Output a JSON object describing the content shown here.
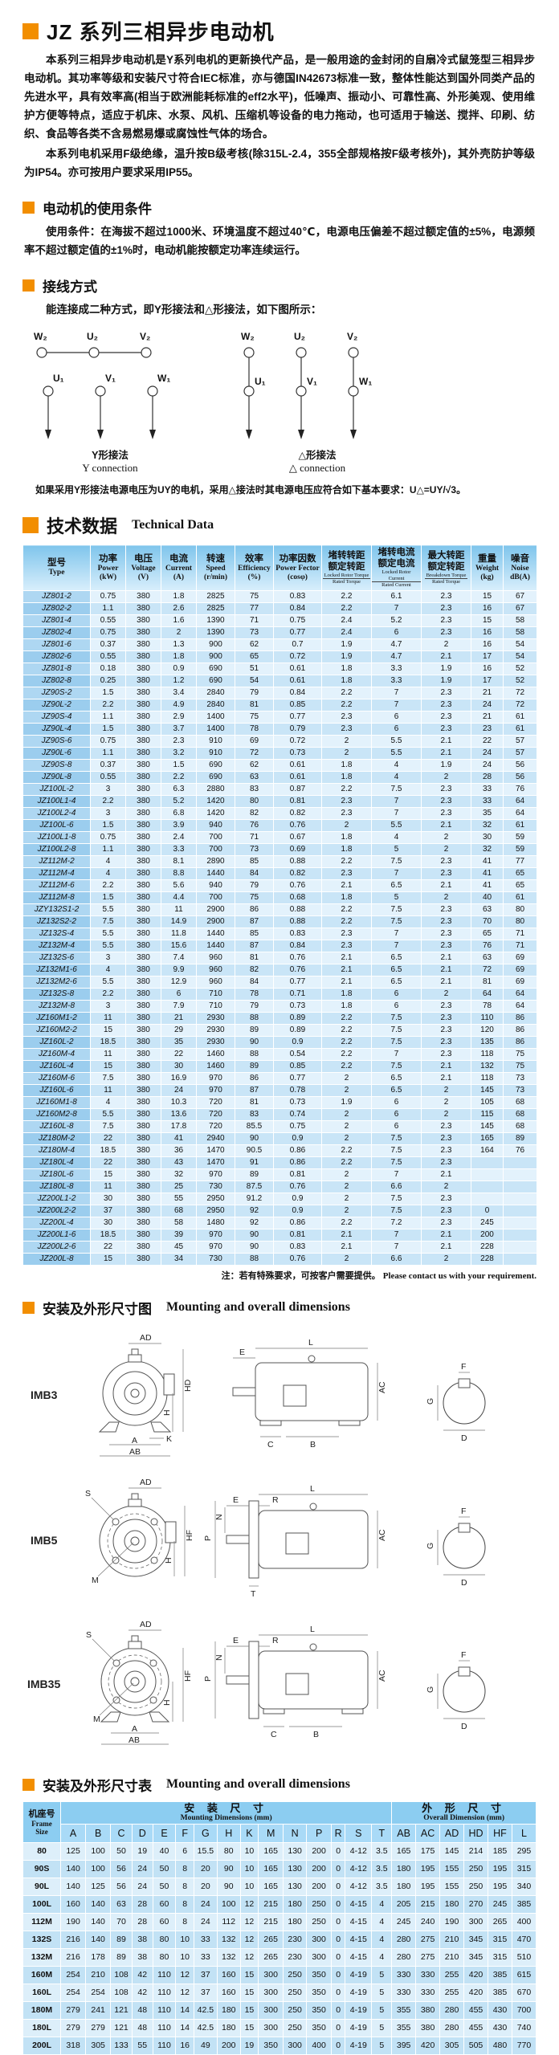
{
  "doc": {
    "title": "JZ 系列三相异步电动机",
    "intro1": "本系列三相异步电动机是Y系列电机的更新换代产品，是一般用途的金封闭的自扇冷式鼠笼型三相异步电动机。其功率等级和安装尺寸符合IEC标准，亦与德国IN42673标准一致，整体性能达到国外同类产品的先进水平，具有效率高(相当于欧洲能耗标准的eff2水平)，低噪声、振动小、可靠性高、外形美观、使用维护方便等特点，适应于机床、水泵、风机、压缩机等设备的电力拖动，也可适用于输送、搅拌、印刷、纺织、食品等各类不含易燃易爆或腐蚀性气体的场合。",
    "intro2": "本系列电机采用F级绝缘，温升按B级考核(除315L-2.4，355全部规格按F级考核外)，其外壳防护等级为IP54。亦可按用户要求采用IP55。"
  },
  "usage": {
    "title": "电动机的使用条件",
    "text": "使用条件：在海拔不超过1000米、环境温度不超过40℃，电源电压偏差不超过额定值的±5%，电源频率不超过额定值的±1%时，电动机能按额定功率连续运行。"
  },
  "wiring": {
    "title": "接线方式",
    "lead": "能连接成二种方式，即Y形接法和△形接法，如下图所示：",
    "top_terminals": [
      "W₂",
      "U₂",
      "V₂"
    ],
    "bottom_terminals": [
      "U₁",
      "V₁",
      "W₁"
    ],
    "y_caption_cn": "Y形接法",
    "y_caption_en": "Y connection",
    "delta_caption_cn": "△形接法",
    "delta_caption_en": "△ connection",
    "note": "如果采用Y形接法电源电压为UY的电机，采用△接法时其电源电压应符合如下基本要求：U△=UY/√3。"
  },
  "tech": {
    "title_cn": "技术数据",
    "title_en": "Technical Data"
  },
  "tech_table": {
    "headers": [
      {
        "cn": "型号",
        "en": "Type"
      },
      {
        "cn": "功率",
        "en": "Power",
        "unit": "(kW)"
      },
      {
        "cn": "电压",
        "en": "Voltage",
        "unit": "(V)"
      },
      {
        "cn": "电流",
        "en": "Current",
        "unit": "(A)"
      },
      {
        "cn": "转速",
        "en": "Speed",
        "unit": "(r/min)"
      },
      {
        "cn": "效率",
        "en": "Efficiency",
        "unit": "(%)"
      },
      {
        "cn": "功率因数",
        "en": "Power Fector",
        "unit": "(cosφ)"
      },
      {
        "cn": "堵转转距",
        "cn2": "额定转距",
        "en": "Locked Rotor Torque",
        "en2": "Rated Torque"
      },
      {
        "cn": "堵转电流",
        "cn2": "额定电流",
        "en": "Locked Rotor Current",
        "en2": "Rated Current"
      },
      {
        "cn": "最大转距",
        "cn2": "额定转距",
        "en": "Breakdown Torque",
        "en2": "Rated Torque"
      },
      {
        "cn": "重量",
        "en": "Weight",
        "unit": "(kg)"
      },
      {
        "cn": "噪音",
        "en": "Noise",
        "unit": "dB(A)"
      }
    ],
    "rows": [
      [
        "JZ801-2",
        "0.75",
        "380",
        "1.8",
        "2825",
        "75",
        "0.83",
        "2.2",
        "6.1",
        "2.3",
        "15",
        "67"
      ],
      [
        "JZ802-2",
        "1.1",
        "380",
        "2.6",
        "2825",
        "77",
        "0.84",
        "2.2",
        "7",
        "2.3",
        "16",
        "67"
      ],
      [
        "JZ801-4",
        "0.55",
        "380",
        "1.6",
        "1390",
        "71",
        "0.75",
        "2.4",
        "5.2",
        "2.3",
        "15",
        "58"
      ],
      [
        "JZ802-4",
        "0.75",
        "380",
        "2",
        "1390",
        "73",
        "0.77",
        "2.4",
        "6",
        "2.3",
        "16",
        "58"
      ],
      [
        "JZ801-6",
        "0.37",
        "380",
        "1.3",
        "900",
        "62",
        "0.7",
        "1.9",
        "4.7",
        "2",
        "16",
        "54"
      ],
      [
        "JZ802-6",
        "0.55",
        "380",
        "1.8",
        "900",
        "65",
        "0.72",
        "1.9",
        "4.7",
        "2.1",
        "17",
        "54"
      ],
      [
        "JZ801-8",
        "0.18",
        "380",
        "0.9",
        "690",
        "51",
        "0.61",
        "1.8",
        "3.3",
        "1.9",
        "16",
        "52"
      ],
      [
        "JZ802-8",
        "0.25",
        "380",
        "1.2",
        "690",
        "54",
        "0.61",
        "1.8",
        "3.3",
        "1.9",
        "17",
        "52"
      ],
      [
        "JZ90S-2",
        "1.5",
        "380",
        "3.4",
        "2840",
        "79",
        "0.84",
        "2.2",
        "7",
        "2.3",
        "21",
        "72"
      ],
      [
        "JZ90L-2",
        "2.2",
        "380",
        "4.9",
        "2840",
        "81",
        "0.85",
        "2.2",
        "7",
        "2.3",
        "24",
        "72"
      ],
      [
        "JZ90S-4",
        "1.1",
        "380",
        "2.9",
        "1400",
        "75",
        "0.77",
        "2.3",
        "6",
        "2.3",
        "21",
        "61"
      ],
      [
        "JZ90L-4",
        "1.5",
        "380",
        "3.7",
        "1400",
        "78",
        "0.79",
        "2.3",
        "6",
        "2.3",
        "23",
        "61"
      ],
      [
        "JZ90S-6",
        "0.75",
        "380",
        "2.3",
        "910",
        "69",
        "0.72",
        "2",
        "5.5",
        "2.1",
        "22",
        "57"
      ],
      [
        "JZ90L-6",
        "1.1",
        "380",
        "3.2",
        "910",
        "72",
        "0.73",
        "2",
        "5.5",
        "2.1",
        "24",
        "57"
      ],
      [
        "JZ90S-8",
        "0.37",
        "380",
        "1.5",
        "690",
        "62",
        "0.61",
        "1.8",
        "4",
        "1.9",
        "24",
        "56"
      ],
      [
        "JZ90L-8",
        "0.55",
        "380",
        "2.2",
        "690",
        "63",
        "0.61",
        "1.8",
        "4",
        "2",
        "28",
        "56"
      ],
      [
        "JZ100L-2",
        "3",
        "380",
        "6.3",
        "2880",
        "83",
        "0.87",
        "2.2",
        "7.5",
        "2.3",
        "33",
        "76"
      ],
      [
        "JZ100L1-4",
        "2.2",
        "380",
        "5.2",
        "1420",
        "80",
        "0.81",
        "2.3",
        "7",
        "2.3",
        "33",
        "64"
      ],
      [
        "JZ100L2-4",
        "3",
        "380",
        "6.8",
        "1420",
        "82",
        "0.82",
        "2.3",
        "7",
        "2.3",
        "35",
        "64"
      ],
      [
        "JZ100L-6",
        "1.5",
        "380",
        "3.9",
        "940",
        "76",
        "0.76",
        "2",
        "5.5",
        "2.1",
        "32",
        "61"
      ],
      [
        "JZ100L1-8",
        "0.75",
        "380",
        "2.4",
        "700",
        "71",
        "0.67",
        "1.8",
        "4",
        "2",
        "30",
        "59"
      ],
      [
        "JZ100L2-8",
        "1.1",
        "380",
        "3.3",
        "700",
        "73",
        "0.69",
        "1.8",
        "5",
        "2",
        "32",
        "59"
      ],
      [
        "JZ112M-2",
        "4",
        "380",
        "8.1",
        "2890",
        "85",
        "0.88",
        "2.2",
        "7.5",
        "2.3",
        "41",
        "77"
      ],
      [
        "JZ112M-4",
        "4",
        "380",
        "8.8",
        "1440",
        "84",
        "0.82",
        "2.3",
        "7",
        "2.3",
        "41",
        "65"
      ],
      [
        "JZ112M-6",
        "2.2",
        "380",
        "5.6",
        "940",
        "79",
        "0.76",
        "2.1",
        "6.5",
        "2.1",
        "41",
        "65"
      ],
      [
        "JZ112M-8",
        "1.5",
        "380",
        "4.4",
        "700",
        "75",
        "0.68",
        "1.8",
        "5",
        "2",
        "40",
        "61"
      ],
      [
        "JZY132S1-2",
        "5.5",
        "380",
        "11",
        "2900",
        "86",
        "0.88",
        "2.2",
        "7.5",
        "2.3",
        "63",
        "80"
      ],
      [
        "JZ132S2-2",
        "7.5",
        "380",
        "14.9",
        "2900",
        "87",
        "0.88",
        "2.2",
        "7.5",
        "2.3",
        "70",
        "80"
      ],
      [
        "JZ132S-4",
        "5.5",
        "380",
        "11.8",
        "1440",
        "85",
        "0.83",
        "2.3",
        "7",
        "2.3",
        "65",
        "71"
      ],
      [
        "JZ132M-4",
        "5.5",
        "380",
        "15.6",
        "1440",
        "87",
        "0.84",
        "2.3",
        "7",
        "2.3",
        "76",
        "71"
      ],
      [
        "JZ132S-6",
        "3",
        "380",
        "7.4",
        "960",
        "81",
        "0.76",
        "2.1",
        "6.5",
        "2.1",
        "63",
        "69"
      ],
      [
        "JZ132M1-6",
        "4",
        "380",
        "9.9",
        "960",
        "82",
        "0.76",
        "2.1",
        "6.5",
        "2.1",
        "72",
        "69"
      ],
      [
        "JZ132M2-6",
        "5.5",
        "380",
        "12.9",
        "960",
        "84",
        "0.77",
        "2.1",
        "6.5",
        "2.1",
        "81",
        "69"
      ],
      [
        "JZ132S-8",
        "2.2",
        "380",
        "6",
        "710",
        "78",
        "0.71",
        "1.8",
        "6",
        "2",
        "64",
        "64"
      ],
      [
        "JZ132M-8",
        "3",
        "380",
        "7.9",
        "710",
        "79",
        "0.73",
        "1.8",
        "6",
        "2.3",
        "78",
        "64"
      ],
      [
        "JZ160M1-2",
        "11",
        "380",
        "21",
        "2930",
        "88",
        "0.89",
        "2.2",
        "7.5",
        "2.3",
        "110",
        "86"
      ],
      [
        "JZ160M2-2",
        "15",
        "380",
        "29",
        "2930",
        "89",
        "0.89",
        "2.2",
        "7.5",
        "2.3",
        "120",
        "86"
      ],
      [
        "JZ160L-2",
        "18.5",
        "380",
        "35",
        "2930",
        "90",
        "0.9",
        "2.2",
        "7.5",
        "2.3",
        "135",
        "86"
      ],
      [
        "JZ160M-4",
        "11",
        "380",
        "22",
        "1460",
        "88",
        "0.54",
        "2.2",
        "7",
        "2.3",
        "118",
        "75"
      ],
      [
        "JZ160L-4",
        "15",
        "380",
        "30",
        "1460",
        "89",
        "0.85",
        "2.2",
        "7.5",
        "2.1",
        "132",
        "75"
      ],
      [
        "JZ160M-6",
        "7.5",
        "380",
        "16.9",
        "970",
        "86",
        "0.77",
        "2",
        "6.5",
        "2.1",
        "118",
        "73"
      ],
      [
        "JZ160L-6",
        "11",
        "380",
        "24",
        "970",
        "87",
        "0.78",
        "2",
        "6.5",
        "2",
        "145",
        "73"
      ],
      [
        "JZ160M1-8",
        "4",
        "380",
        "10.3",
        "720",
        "81",
        "0.73",
        "1.9",
        "6",
        "2",
        "105",
        "68"
      ],
      [
        "JZ160M2-8",
        "5.5",
        "380",
        "13.6",
        "720",
        "83",
        "0.74",
        "2",
        "6",
        "2",
        "115",
        "68"
      ],
      [
        "JZ160L-8",
        "7.5",
        "380",
        "17.8",
        "720",
        "85.5",
        "0.75",
        "2",
        "6",
        "2.3",
        "145",
        "68"
      ],
      [
        "JZ180M-2",
        "22",
        "380",
        "41",
        "2940",
        "90",
        "0.9",
        "2",
        "7.5",
        "2.3",
        "165",
        "89"
      ],
      [
        "JZ180M-4",
        "18.5",
        "380",
        "36",
        "1470",
        "90.5",
        "0.86",
        "2.2",
        "7.5",
        "2.3",
        "164",
        "76"
      ],
      [
        "JZ180L-4",
        "22",
        "380",
        "43",
        "1470",
        "91",
        "0.86",
        "2.2",
        "7.5",
        "2.3",
        "",
        ""
      ],
      [
        "JZ180L-6",
        "15",
        "380",
        "32",
        "970",
        "89",
        "0.81",
        "2",
        "7",
        "2.1",
        "",
        ""
      ],
      [
        "JZ180L-8",
        "11",
        "380",
        "25",
        "730",
        "87.5",
        "0.76",
        "2",
        "6.6",
        "2",
        "",
        ""
      ],
      [
        "JZ200L1-2",
        "30",
        "380",
        "55",
        "2950",
        "91.2",
        "0.9",
        "2",
        "7.5",
        "2.3",
        "",
        ""
      ],
      [
        "JZ200L2-2",
        "37",
        "380",
        "68",
        "2950",
        "92",
        "0.9",
        "2",
        "7.5",
        "2.3",
        "0",
        ""
      ],
      [
        "JZ200L-4",
        "30",
        "380",
        "58",
        "1480",
        "92",
        "0.86",
        "2.2",
        "7.2",
        "2.3",
        "245",
        ""
      ],
      [
        "JZ200L1-6",
        "18.5",
        "380",
        "39",
        "970",
        "90",
        "0.81",
        "2.1",
        "7",
        "2.1",
        "200",
        ""
      ],
      [
        "JZ200L2-6",
        "22",
        "380",
        "45",
        "970",
        "90",
        "0.83",
        "2.1",
        "7",
        "2.1",
        "228",
        ""
      ],
      [
        "JZ200L-8",
        "15",
        "380",
        "34",
        "730",
        "88",
        "0.76",
        "2",
        "6.6",
        "2",
        "228",
        ""
      ]
    ],
    "note_cn": "注：若有特殊要求，可按客户需要提供。",
    "note_en": "Please contact us with your requirement."
  },
  "mount_fig": {
    "title_cn": "安装及外形尺寸图",
    "title_en": "Mounting and overall dimensions",
    "figures": [
      {
        "label": "IMB3",
        "front": [
          "AD",
          "HD",
          "H",
          "K",
          "A",
          "AB"
        ],
        "side": [
          "L",
          "E",
          "C",
          "B",
          "AC"
        ],
        "shaft": [
          "F",
          "G",
          "D"
        ]
      },
      {
        "label": "IMB5",
        "front": [
          "AD",
          "S",
          "M",
          "HF",
          "H"
        ],
        "side": [
          "L",
          "E",
          "R",
          "P",
          "N",
          "AC",
          "T"
        ],
        "shaft": [
          "F",
          "G",
          "D"
        ]
      },
      {
        "label": "IMB35",
        "front": [
          "AD",
          "S",
          "M",
          "HF",
          "H",
          "A",
          "AB"
        ],
        "side": [
          "L",
          "E",
          "R",
          "P",
          "N",
          "AC",
          "C",
          "B"
        ],
        "shaft": [
          "F",
          "G",
          "D"
        ]
      }
    ]
  },
  "dim_sec": {
    "title_cn": "安装及外形尺寸表",
    "title_en": "Mounting and overall dimensions"
  },
  "dim_table": {
    "frame_cn": "机座号",
    "frame_en1": "Frame",
    "frame_en2": "Size",
    "mount_group_cn": "安 装 尺 寸",
    "mount_group_en": "Mounting Dimensions (mm)",
    "overall_group_cn": "外 形 尺 寸",
    "overall_group_en": "Overall Dimension (mm)",
    "cols": [
      "A",
      "B",
      "C",
      "D",
      "E",
      "F",
      "G",
      "H",
      "K",
      "M",
      "N",
      "P",
      "R",
      "S",
      "T",
      "AB",
      "AC",
      "AD",
      "HD",
      "HF",
      "L"
    ],
    "rows": [
      [
        "80",
        "125",
        "100",
        "50",
        "19",
        "40",
        "6",
        "15.5",
        "80",
        "10",
        "165",
        "130",
        "200",
        "0",
        "4-12",
        "3.5",
        "165",
        "175",
        "145",
        "214",
        "185",
        "295"
      ],
      [
        "90S",
        "140",
        "100",
        "56",
        "24",
        "50",
        "8",
        "20",
        "90",
        "10",
        "165",
        "130",
        "200",
        "0",
        "4-12",
        "3.5",
        "180",
        "195",
        "155",
        "250",
        "195",
        "315"
      ],
      [
        "90L",
        "140",
        "125",
        "56",
        "24",
        "50",
        "8",
        "20",
        "90",
        "10",
        "165",
        "130",
        "200",
        "0",
        "4-12",
        "3.5",
        "180",
        "195",
        "155",
        "250",
        "195",
        "340"
      ],
      [
        "100L",
        "160",
        "140",
        "63",
        "28",
        "60",
        "8",
        "24",
        "100",
        "12",
        "215",
        "180",
        "250",
        "0",
        "4-15",
        "4",
        "205",
        "215",
        "180",
        "270",
        "245",
        "385"
      ],
      [
        "112M",
        "190",
        "140",
        "70",
        "28",
        "60",
        "8",
        "24",
        "112",
        "12",
        "215",
        "180",
        "250",
        "0",
        "4-15",
        "4",
        "245",
        "240",
        "190",
        "300",
        "265",
        "400"
      ],
      [
        "132S",
        "216",
        "140",
        "89",
        "38",
        "80",
        "10",
        "33",
        "132",
        "12",
        "265",
        "230",
        "300",
        "0",
        "4-15",
        "4",
        "280",
        "275",
        "210",
        "345",
        "315",
        "470"
      ],
      [
        "132M",
        "216",
        "178",
        "89",
        "38",
        "80",
        "10",
        "33",
        "132",
        "12",
        "265",
        "230",
        "300",
        "0",
        "4-15",
        "4",
        "280",
        "275",
        "210",
        "345",
        "315",
        "510"
      ],
      [
        "160M",
        "254",
        "210",
        "108",
        "42",
        "110",
        "12",
        "37",
        "160",
        "15",
        "300",
        "250",
        "350",
        "0",
        "4-19",
        "5",
        "330",
        "330",
        "255",
        "420",
        "385",
        "615"
      ],
      [
        "160L",
        "254",
        "254",
        "108",
        "42",
        "110",
        "12",
        "37",
        "160",
        "15",
        "300",
        "250",
        "350",
        "0",
        "4-19",
        "5",
        "330",
        "330",
        "255",
        "420",
        "385",
        "670"
      ],
      [
        "180M",
        "279",
        "241",
        "121",
        "48",
        "110",
        "14",
        "42.5",
        "180",
        "15",
        "300",
        "250",
        "350",
        "0",
        "4-19",
        "5",
        "355",
        "380",
        "280",
        "455",
        "430",
        "700"
      ],
      [
        "180L",
        "279",
        "279",
        "121",
        "48",
        "110",
        "14",
        "42.5",
        "180",
        "15",
        "300",
        "250",
        "350",
        "0",
        "4-19",
        "5",
        "355",
        "380",
        "280",
        "455",
        "430",
        "740"
      ],
      [
        "200L",
        "318",
        "305",
        "133",
        "55",
        "110",
        "16",
        "49",
        "200",
        "19",
        "350",
        "300",
        "400",
        "0",
        "4-19",
        "5",
        "395",
        "420",
        "305",
        "505",
        "480",
        "770"
      ]
    ]
  }
}
